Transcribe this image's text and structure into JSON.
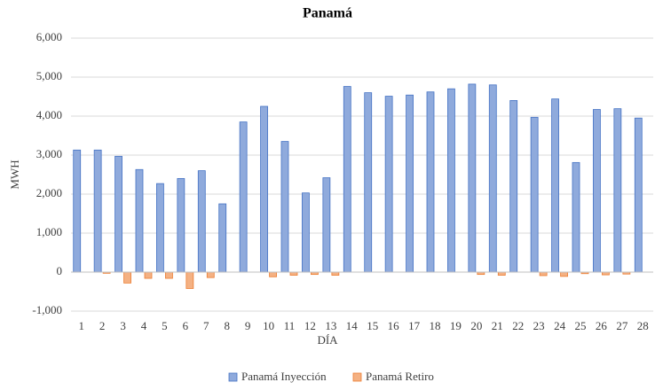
{
  "chart_data": {
    "type": "bar",
    "title": "Panamá",
    "x_label": "DÍA",
    "y_label": "MWH",
    "categories": [
      "1",
      "2",
      "3",
      "4",
      "5",
      "6",
      "7",
      "8",
      "9",
      "10",
      "11",
      "12",
      "13",
      "14",
      "15",
      "16",
      "17",
      "18",
      "19",
      "20",
      "21",
      "22",
      "23",
      "24",
      "25",
      "26",
      "27",
      "28"
    ],
    "series": [
      {
        "name": "Panamá Inyección",
        "color": "#8faadc",
        "edge": "#4472c4",
        "values": [
          3130,
          3130,
          2970,
          2630,
          2270,
          2400,
          2600,
          1750,
          3850,
          4250,
          3350,
          2030,
          2420,
          4760,
          4600,
          4510,
          4540,
          4620,
          4700,
          4820,
          4800,
          4400,
          3970,
          4440,
          2810,
          4170,
          4190,
          3950
        ]
      },
      {
        "name": "Panamá Retiro",
        "color": "#f4b183",
        "edge": "#ed7d31",
        "values": [
          0,
          -30,
          -280,
          -160,
          -160,
          -420,
          -140,
          0,
          0,
          -120,
          -80,
          -60,
          -80,
          0,
          0,
          0,
          0,
          0,
          0,
          -60,
          -80,
          0,
          -90,
          -110,
          -40,
          -70,
          -50,
          0
        ]
      }
    ],
    "ylim": [
      -1000,
      6000
    ],
    "yticks": [
      {
        "value": -1000,
        "label": "-1,000"
      },
      0,
      {
        "value": 1000,
        "label": "1,000"
      },
      {
        "value": 2000,
        "label": "2,000"
      },
      {
        "value": 3000,
        "label": "3,000"
      },
      {
        "value": 4000,
        "label": "4,000"
      },
      {
        "value": 5000,
        "label": "5,000"
      },
      {
        "value": 6000,
        "label": "6,000"
      }
    ],
    "grid": true,
    "legend": "bottom"
  }
}
